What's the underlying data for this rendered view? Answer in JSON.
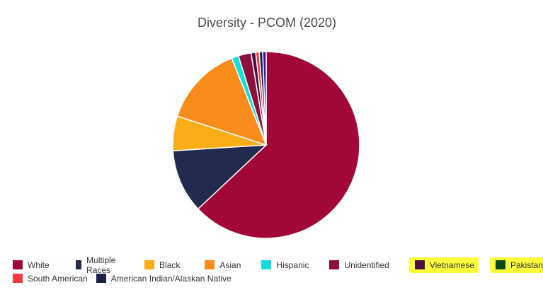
{
  "chart_data": {
    "type": "pie",
    "title": "Diversity - PCOM (2020)",
    "series": [
      {
        "label": "White",
        "value": 63.0,
        "color": "#a10838"
      },
      {
        "label": "Multiple Races",
        "value": 11.0,
        "color": "#222b4d"
      },
      {
        "label": "Black",
        "value": 6.0,
        "color": "#fbad17"
      },
      {
        "label": "Asian",
        "value": 14.0,
        "color": "#f78c1b"
      },
      {
        "label": "Hispanic",
        "value": 1.2,
        "color": "#13dedd"
      },
      {
        "label": "Unidentified",
        "value": 2.2,
        "color": "#8d0f3d"
      },
      {
        "label": "Vietnamese",
        "value": 0.8,
        "color": "#4b1141"
      },
      {
        "label": "Pakistani",
        "value": 0.0,
        "color": "#0a4a14"
      },
      {
        "label": "South American",
        "value": 0.6,
        "color": "#f23a3f"
      },
      {
        "label": "American Indian/Alaskan Native",
        "value": 0.6,
        "color": "#1c2148"
      },
      {
        "label": "",
        "value": 0.6,
        "color": "#2a1a8a"
      }
    ],
    "legend_placement": "bottom",
    "highlighted": [
      "Vietnamese",
      "Pakistani"
    ],
    "highlight_color": "#ffff3a"
  }
}
